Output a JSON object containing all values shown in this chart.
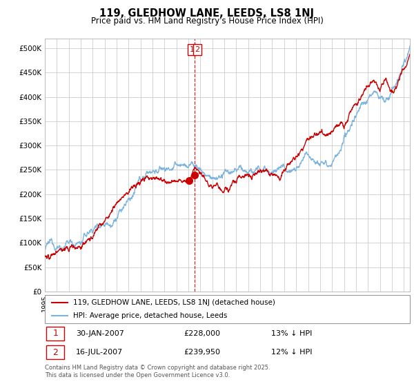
{
  "title": "119, GLEDHOW LANE, LEEDS, LS8 1NJ",
  "subtitle": "Price paid vs. HM Land Registry's House Price Index (HPI)",
  "ylim": [
    0,
    520000
  ],
  "yticks": [
    0,
    50000,
    100000,
    150000,
    200000,
    250000,
    300000,
    350000,
    400000,
    450000,
    500000
  ],
  "ytick_labels": [
    "£0",
    "£50K",
    "£100K",
    "£150K",
    "£200K",
    "£250K",
    "£300K",
    "£350K",
    "£400K",
    "£450K",
    "£500K"
  ],
  "hpi_color": "#7cb4e0",
  "price_color": "#cc0000",
  "annotation_box_color": "#cc0000",
  "grid_color": "#cccccc",
  "legend_label_price": "119, GLEDHOW LANE, LEEDS, LS8 1NJ (detached house)",
  "legend_label_hpi": "HPI: Average price, detached house, Leeds",
  "sale1_date_label": "30-JAN-2007",
  "sale1_price": 228000,
  "sale1_price_label": "£228,000",
  "sale1_hpi_label": "13% ↓ HPI",
  "sale1_year": 2007.08,
  "sale2_date_label": "16-JUL-2007",
  "sale2_price": 239950,
  "sale2_price_label": "£239,950",
  "sale2_hpi_label": "12% ↓ HPI",
  "sale2_year": 2007.54,
  "vline_x": 2007.54,
  "footer": "Contains HM Land Registry data © Crown copyright and database right 2025.\nThis data is licensed under the Open Government Licence v3.0.",
  "xlim_start": 1995.0,
  "xlim_end": 2025.5
}
